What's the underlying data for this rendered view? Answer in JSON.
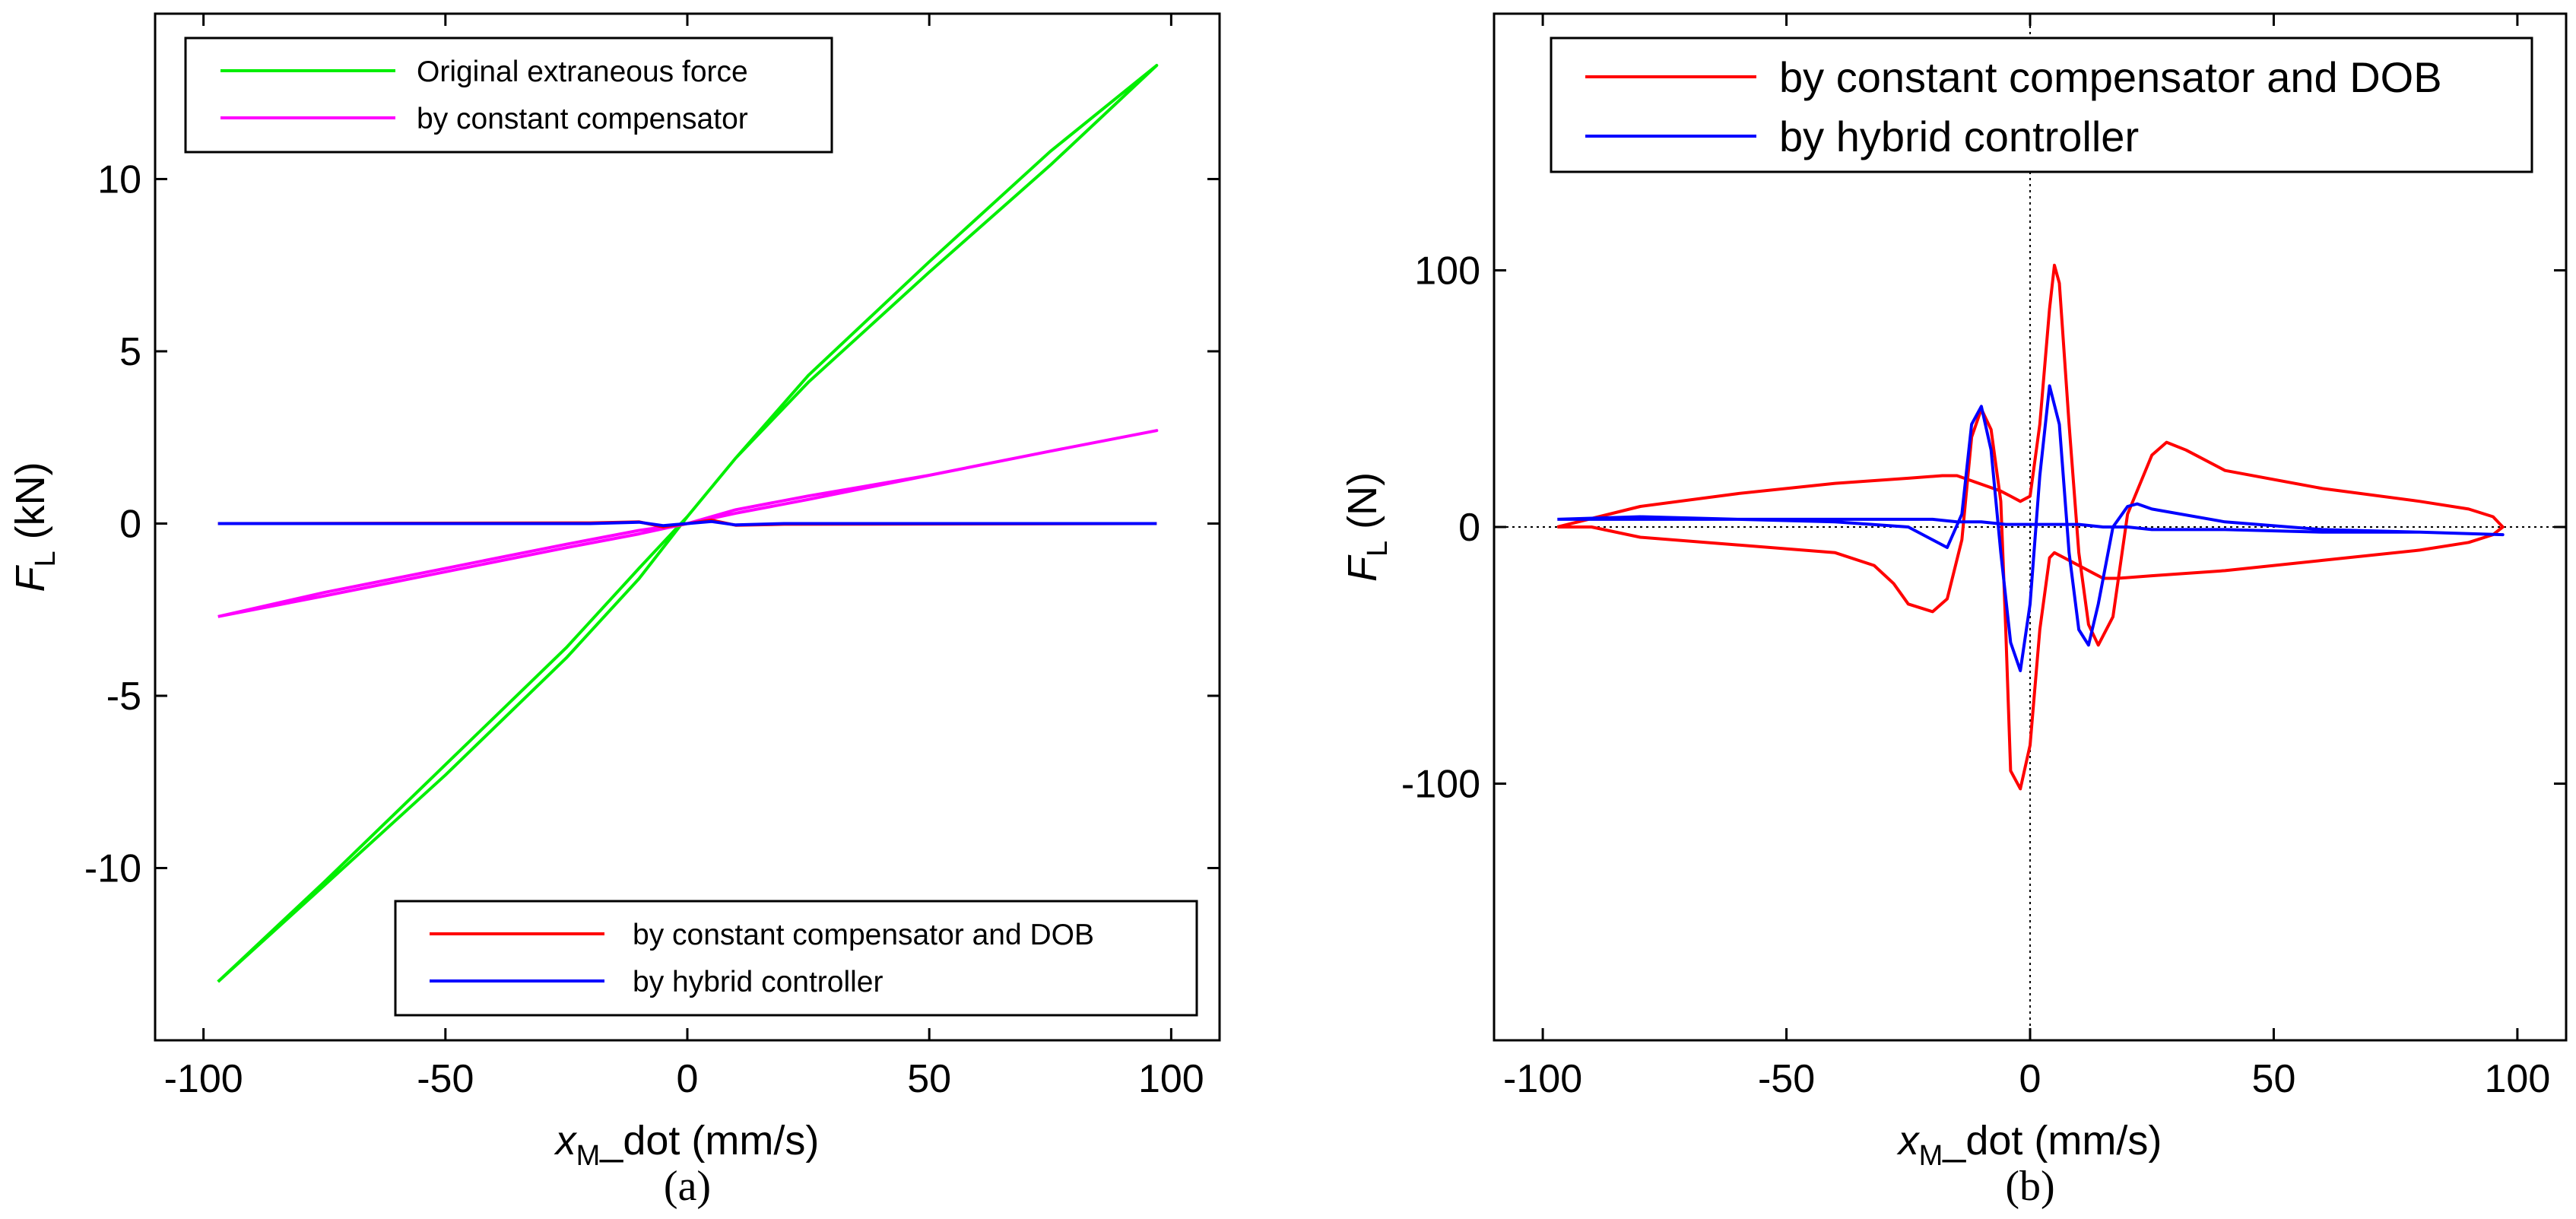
{
  "chart_data": [
    {
      "panel": "a",
      "type": "line",
      "caption": "(a)",
      "xlabel": {
        "var": "x",
        "sub": "M",
        "rest": "_dot (mm/s)"
      },
      "ylabel": {
        "var": "F",
        "sub": "L",
        "rest": " (kN)"
      },
      "xlim": [
        -110,
        110
      ],
      "ylim": [
        -15,
        14.8
      ],
      "xticks": [
        -100,
        -50,
        0,
        50,
        100
      ],
      "xtick_labels": [
        "-100",
        "-50",
        "0",
        "50",
        "100"
      ],
      "yticks": [
        -10,
        -5,
        0,
        5,
        10
      ],
      "ytick_labels": [
        "-10",
        "-5",
        "0",
        "5",
        "10"
      ],
      "grid": false,
      "legends": [
        {
          "placement": "top-left",
          "entries": [
            "Original extraneous force",
            "by constant compensator"
          ]
        },
        {
          "placement": "bottom-right",
          "entries": [
            "by constant compensator and DOB",
            "by hybrid controller"
          ]
        }
      ],
      "series": [
        {
          "name": "Original extraneous force",
          "color": "#00ee00",
          "x": [
            -97,
            -75,
            -50,
            -25,
            -10,
            0,
            10,
            25,
            50,
            75,
            97,
            75,
            50,
            25,
            10,
            0,
            -10,
            -25,
            -50,
            -75,
            -97
          ],
          "y": [
            -13.3,
            -10.4,
            -7.0,
            -3.6,
            -1.3,
            0.2,
            1.9,
            4.1,
            7.3,
            10.4,
            13.3,
            10.8,
            7.6,
            4.3,
            1.9,
            0.2,
            -1.6,
            -3.9,
            -7.3,
            -10.5,
            -13.3
          ]
        },
        {
          "name": "by constant compensator",
          "color": "#ff00ff",
          "x": [
            -97,
            -75,
            -50,
            -25,
            -10,
            0,
            10,
            25,
            50,
            75,
            97,
            75,
            50,
            25,
            10,
            0,
            -10,
            -25,
            -50,
            -75,
            -97
          ],
          "y": [
            -2.7,
            -2.1,
            -1.4,
            -0.7,
            -0.3,
            0.0,
            0.4,
            0.8,
            1.4,
            2.1,
            2.7,
            2.1,
            1.4,
            0.7,
            0.3,
            0.0,
            -0.2,
            -0.6,
            -1.3,
            -2.0,
            -2.7
          ]
        },
        {
          "name": "by constant compensator and DOB",
          "color": "#ff0000",
          "x": [
            -97,
            -20,
            -10,
            -5,
            0,
            5,
            10,
            20,
            97
          ],
          "y": [
            0.0,
            0.02,
            0.05,
            -0.1,
            0.0,
            0.1,
            -0.05,
            -0.02,
            0.0
          ]
        },
        {
          "name": "by hybrid controller",
          "color": "#0000ff",
          "x": [
            -97,
            -20,
            -10,
            -5,
            0,
            5,
            10,
            20,
            97
          ],
          "y": [
            0.0,
            0.0,
            0.04,
            -0.06,
            0.0,
            0.06,
            -0.04,
            0.0,
            0.0
          ]
        }
      ]
    },
    {
      "panel": "b",
      "type": "line",
      "caption": "(b)",
      "xlabel": {
        "var": "x",
        "sub": "M",
        "rest": "_dot (mm/s)"
      },
      "ylabel": {
        "var": "F",
        "sub": "L",
        "rest": " (N)"
      },
      "xlim": [
        -110,
        110
      ],
      "ylim": [
        -200,
        200
      ],
      "xticks": [
        -100,
        -50,
        0,
        50,
        100
      ],
      "xtick_labels": [
        "-100",
        "-50",
        "0",
        "50",
        "100"
      ],
      "yticks": [
        -100,
        0,
        100
      ],
      "ytick_labels": [
        "-100",
        "0",
        "100"
      ],
      "grid": false,
      "zero_lines": true,
      "legends": [
        {
          "placement": "top",
          "entries": [
            "by constant compensator and DOB",
            "by hybrid controller"
          ]
        }
      ],
      "series": [
        {
          "name": "by constant compensator and DOB",
          "color": "#ff0000",
          "x": [
            -97,
            -80,
            -60,
            -40,
            -25,
            -18,
            -15,
            -12,
            -9,
            -6,
            -4,
            -2,
            0,
            2,
            4,
            5,
            6,
            8,
            10,
            12,
            14,
            17,
            20,
            25,
            28,
            32,
            40,
            60,
            80,
            90,
            95,
            97,
            95,
            90,
            80,
            60,
            40,
            25,
            18,
            15,
            13,
            11,
            9,
            7,
            5,
            4,
            2,
            0,
            -2,
            -4,
            -5,
            -6,
            -8,
            -10,
            -12,
            -14,
            -17,
            -20,
            -25,
            -28,
            -32,
            -40,
            -60,
            -80,
            -90,
            -95,
            -97
          ],
          "y": [
            0,
            8,
            13,
            17,
            19,
            20,
            20,
            18,
            16,
            14,
            12,
            10,
            12,
            40,
            85,
            102,
            95,
            40,
            -10,
            -38,
            -46,
            -35,
            5,
            28,
            33,
            30,
            22,
            15,
            10,
            7,
            4,
            0,
            -3,
            -6,
            -9,
            -13,
            -17,
            -19,
            -20,
            -20,
            -18,
            -16,
            -14,
            -12,
            -10,
            -12,
            -40,
            -85,
            -102,
            -95,
            -40,
            10,
            38,
            46,
            35,
            -5,
            -28,
            -33,
            -30,
            -22,
            -15,
            -10,
            -7,
            -4,
            0,
            0,
            0
          ]
        },
        {
          "name": "by hybrid controller",
          "color": "#0000ff",
          "x": [
            -97,
            -80,
            -60,
            -40,
            -25,
            -20,
            -17,
            -14,
            -12,
            -10,
            -8,
            -6,
            -4,
            -2,
            0,
            2,
            4,
            6,
            8,
            10,
            12,
            14,
            17,
            20,
            22,
            25,
            40,
            60,
            80,
            97,
            80,
            60,
            40,
            25,
            20,
            15,
            10,
            5,
            0,
            -5,
            -10,
            -15,
            -20,
            -25,
            -40,
            -60,
            -80,
            -97
          ],
          "y": [
            3,
            4,
            3,
            2,
            0,
            -5,
            -8,
            5,
            40,
            47,
            30,
            -10,
            -45,
            -56,
            -30,
            20,
            55,
            40,
            -10,
            -40,
            -46,
            -30,
            0,
            8,
            9,
            7,
            2,
            -1,
            -2,
            -3,
            -2,
            -2,
            -1,
            -1,
            0,
            0,
            1,
            1,
            1,
            1,
            2,
            2,
            3,
            3,
            3,
            3,
            3,
            3
          ]
        }
      ]
    }
  ]
}
